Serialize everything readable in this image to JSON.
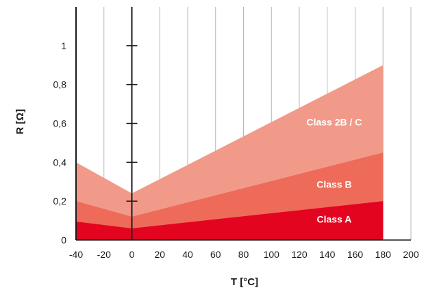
{
  "chart_data": {
    "type": "area",
    "xlabel": "T [°C]",
    "ylabel": "R [Ω]",
    "x_ticks": [
      "-40",
      "-20",
      "0",
      "20",
      "40",
      "60",
      "80",
      "100",
      "120",
      "140",
      "160",
      "180",
      "200"
    ],
    "y_ticks": [
      "0",
      "0,2",
      "0,4",
      "0,6",
      "0,8",
      "1"
    ],
    "xlim": [
      -40,
      200
    ],
    "ylim": [
      0,
      1.2
    ],
    "grid": "vertical",
    "x": [
      -40,
      0,
      180
    ],
    "series": [
      {
        "name": "Class A",
        "values": [
          0.095,
          0.06,
          0.2
        ],
        "color": "#e30520"
      },
      {
        "name": "Class B",
        "values": [
          0.2,
          0.12,
          0.45
        ],
        "color": "#ee6b5a"
      },
      {
        "name": "Class 2B / C",
        "values": [
          0.4,
          0.24,
          0.9
        ],
        "color": "#f19a89"
      }
    ],
    "annotations": [
      {
        "text": "Class A",
        "x": 145,
        "y": 0.09
      },
      {
        "text": "Class B",
        "x": 145,
        "y": 0.27
      },
      {
        "text": "Class 2B / C",
        "x": 145,
        "y": 0.59
      }
    ]
  }
}
